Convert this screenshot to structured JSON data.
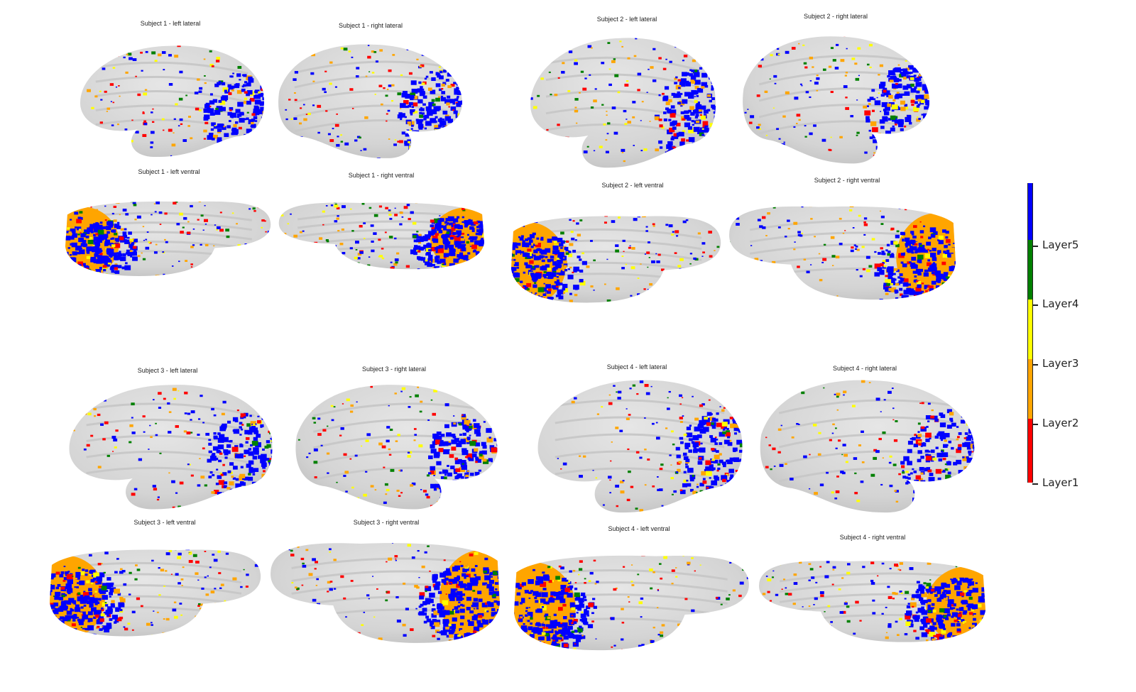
{
  "panels": [
    {
      "id": "s1-left-lateral",
      "title": "Subject 1 - left lateral"
    },
    {
      "id": "s1-right-lateral",
      "title": "Subject 1 - right lateral"
    },
    {
      "id": "s2-left-lateral",
      "title": "Subject 2 - left lateral"
    },
    {
      "id": "s2-right-lateral",
      "title": "Subject 2 - right lateral"
    },
    {
      "id": "s1-left-ventral",
      "title": "Subject 1 - left ventral"
    },
    {
      "id": "s1-right-ventral",
      "title": "Subject 1 - right ventral"
    },
    {
      "id": "s2-left-ventral",
      "title": "Subject 2 - left ventral"
    },
    {
      "id": "s2-right-ventral",
      "title": "Subject 2 - right ventral"
    },
    {
      "id": "s3-left-lateral",
      "title": "Subject 3 - left lateral"
    },
    {
      "id": "s3-right-lateral",
      "title": "Subject 3 - right lateral"
    },
    {
      "id": "s4-left-lateral",
      "title": "Subject 4 - left lateral"
    },
    {
      "id": "s4-right-lateral",
      "title": "Subject 4 - right lateral"
    },
    {
      "id": "s3-left-ventral",
      "title": "Subject 3 - left ventral"
    },
    {
      "id": "s3-right-ventral",
      "title": "Subject 3 - right ventral"
    },
    {
      "id": "s4-left-ventral",
      "title": "Subject 4 - left ventral"
    },
    {
      "id": "s4-right-ventral",
      "title": "Subject 4 - right ventral"
    }
  ],
  "legend": {
    "layers": [
      {
        "label": "Layer5",
        "color": "#0000ff"
      },
      {
        "label": "Layer4",
        "color": "#008000"
      },
      {
        "label": "Layer3",
        "color": "#ffff00"
      },
      {
        "label": "Layer2",
        "color": "#ffa500"
      },
      {
        "label": "Layer1",
        "color": "#ff0000"
      }
    ]
  },
  "colors": {
    "surface": "#e6e6e6",
    "surface_shadow": "#bdbdbd",
    "blue": "#0000ff",
    "green": "#008000",
    "yellow": "#ffff00",
    "orange": "#ffa500",
    "red": "#ff0000"
  }
}
